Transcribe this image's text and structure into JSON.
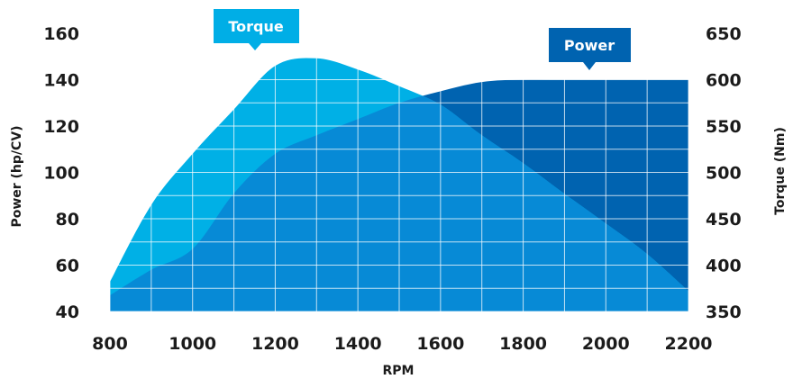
{
  "colors": {
    "power_fill": "#0063b0",
    "torque_fill": "#00b0e6",
    "overlap_fill": "#078ad6",
    "label_box": "#00aee6",
    "power_label_box": "#0063b0"
  },
  "chart_data": {
    "type": "area",
    "xlabel": "RPM",
    "ylabel_left": "Power (hp/CV)",
    "ylabel_right": "Torque (Nm)",
    "xlim": [
      800,
      2200
    ],
    "ylim_left": [
      40,
      160
    ],
    "ylim_right": [
      350,
      650
    ],
    "x_ticks": [
      "800",
      "1000",
      "1200",
      "1400",
      "1600",
      "1800",
      "2000",
      "2200"
    ],
    "y_ticks_left": [
      "40",
      "60",
      "80",
      "100",
      "120",
      "140",
      "160"
    ],
    "y_ticks_right": [
      "350",
      "400",
      "450",
      "500",
      "550",
      "600",
      "650"
    ],
    "grid": true,
    "series": [
      {
        "name": "Power",
        "axis": "left",
        "x": [
          800,
          900,
          1000,
          1100,
          1200,
          1300,
          1400,
          1500,
          1600,
          1700,
          1800,
          1900,
          2000,
          2100,
          2200
        ],
        "values": [
          47,
          58,
          67,
          91,
          108,
          116,
          123,
          130,
          135,
          139,
          140,
          140,
          140,
          140,
          140
        ]
      },
      {
        "name": "Torque",
        "axis": "right",
        "x": [
          800,
          900,
          1000,
          1100,
          1200,
          1300,
          1400,
          1500,
          1600,
          1700,
          1800,
          1900,
          2000,
          2100,
          2200
        ],
        "values": [
          382,
          465,
          520,
          568,
          615,
          623,
          611,
          593,
          573,
          540,
          510,
          477,
          445,
          412,
          372
        ]
      }
    ]
  }
}
